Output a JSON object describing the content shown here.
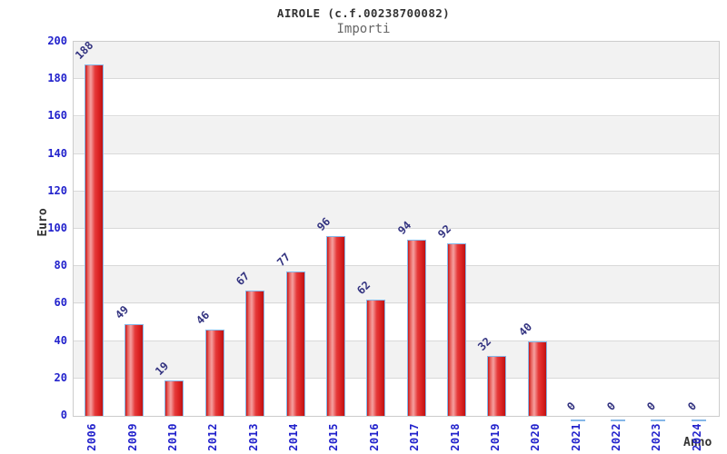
{
  "header": {
    "title": "AIROLE (c.f.00238700082)",
    "subtitle": "Importi"
  },
  "chart_data": {
    "type": "bar",
    "title": "AIROLE (c.f.00238700082)",
    "subtitle": "Importi",
    "xlabel": "Anno",
    "ylabel": "Euro",
    "categories": [
      "2006",
      "2009",
      "2010",
      "2012",
      "2013",
      "2014",
      "2015",
      "2016",
      "2017",
      "2018",
      "2019",
      "2020",
      "2021",
      "2022",
      "2023",
      "2024"
    ],
    "values": [
      188,
      49,
      19,
      46,
      67,
      77,
      96,
      62,
      94,
      92,
      32,
      40,
      0,
      0,
      0,
      0
    ],
    "ylim": [
      0,
      200
    ],
    "y_ticks": [
      0,
      20,
      40,
      60,
      80,
      100,
      120,
      140,
      160,
      180,
      200
    ],
    "grid": "horizontal gridlines every 20 with alternating gray bands",
    "legend": "none",
    "colors": {
      "bar_edge": "#85b7e8",
      "bar_fill_gradient": [
        "#c81515",
        "#f5a0a0",
        "#e02828",
        "#bf1212"
      ],
      "axis_tick_label": "#2222cc",
      "value_label": "#333380",
      "band": "#f2f2f2",
      "gridline": "#d9d9d9",
      "plot_border": "#cccccc",
      "title": "#333333",
      "subtitle": "#666666"
    }
  }
}
